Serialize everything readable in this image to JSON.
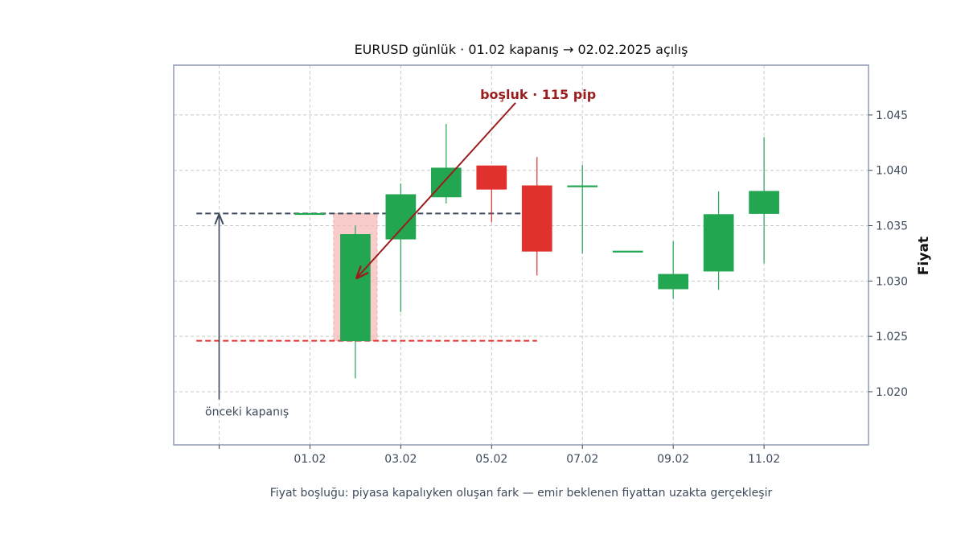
{
  "chart_data": {
    "type": "candlestick",
    "title": "EURUSD günlük · 01.02 kapanış → 02.02.2025 açılış",
    "ylabel": "Fiyat",
    "caption": "Fiyat boşluğu: piyasa kapalıyken oluşan fark — emir beklenen fiyattan uzakta gerçekleşir",
    "ylim": [
      1.0152,
      1.0495
    ],
    "xlim": [
      -1.0,
      14.3
    ],
    "yticks": [
      {
        "value": 1.02,
        "label": "1.020"
      },
      {
        "value": 1.025,
        "label": "1.025"
      },
      {
        "value": 1.03,
        "label": "1.030"
      },
      {
        "value": 1.035,
        "label": "1.035"
      },
      {
        "value": 1.04,
        "label": "1.040"
      },
      {
        "value": 1.045,
        "label": "1.045"
      }
    ],
    "xticks": [
      {
        "x": 0,
        "label": ""
      },
      {
        "x": 2,
        "label": "01.02"
      },
      {
        "x": 4,
        "label": "03.02"
      },
      {
        "x": 6,
        "label": "05.02"
      },
      {
        "x": 8,
        "label": "07.02"
      },
      {
        "x": 10,
        "label": "09.02"
      },
      {
        "x": 12,
        "label": "11.02"
      }
    ],
    "candles": [
      {
        "x": 2,
        "open": 1.0361,
        "high": 1.0361,
        "low": 1.0361,
        "close": 1.0361
      },
      {
        "x": 3,
        "open": 1.0246,
        "high": 1.035,
        "low": 1.0212,
        "close": 1.0342
      },
      {
        "x": 4,
        "open": 1.0338,
        "high": 1.0388,
        "low": 1.0272,
        "close": 1.0378
      },
      {
        "x": 5,
        "open": 1.0376,
        "high": 1.0442,
        "low": 1.037,
        "close": 1.0402
      },
      {
        "x": 6,
        "open": 1.0404,
        "high": 1.0404,
        "low": 1.0353,
        "close": 1.0383
      },
      {
        "x": 7,
        "open": 1.0386,
        "high": 1.0412,
        "low": 1.0305,
        "close": 1.0327
      },
      {
        "x": 8,
        "open": 1.0386,
        "high": 1.0405,
        "low": 1.0325,
        "close": 1.0386
      },
      {
        "x": 9,
        "open": 1.0327,
        "high": 1.0327,
        "low": 1.0327,
        "close": 1.0327
      },
      {
        "x": 10,
        "open": 1.0293,
        "high": 1.0336,
        "low": 1.0284,
        "close": 1.0306
      },
      {
        "x": 11,
        "open": 1.0309,
        "high": 1.0381,
        "low": 1.0292,
        "close": 1.036
      },
      {
        "x": 12,
        "open": 1.0361,
        "high": 1.043,
        "low": 1.0316,
        "close": 1.0381
      }
    ],
    "prev_close": 1.0361,
    "gap_open": 1.0246,
    "gap_candle_x": 3,
    "gap_label": "boşluk · 115 pip",
    "prev_close_label": "önceki kapanış",
    "grid": true,
    "colors": {
      "up": "#22a652",
      "down": "#e0312f",
      "prev_close_line": "#3d4a5c",
      "gap_line": "#e0312f",
      "gap_zone": "#f5b7b5",
      "gap_arrow": "#9b1c1c",
      "frame": "#8e9bb3",
      "grid": "#c8c8c8"
    }
  }
}
